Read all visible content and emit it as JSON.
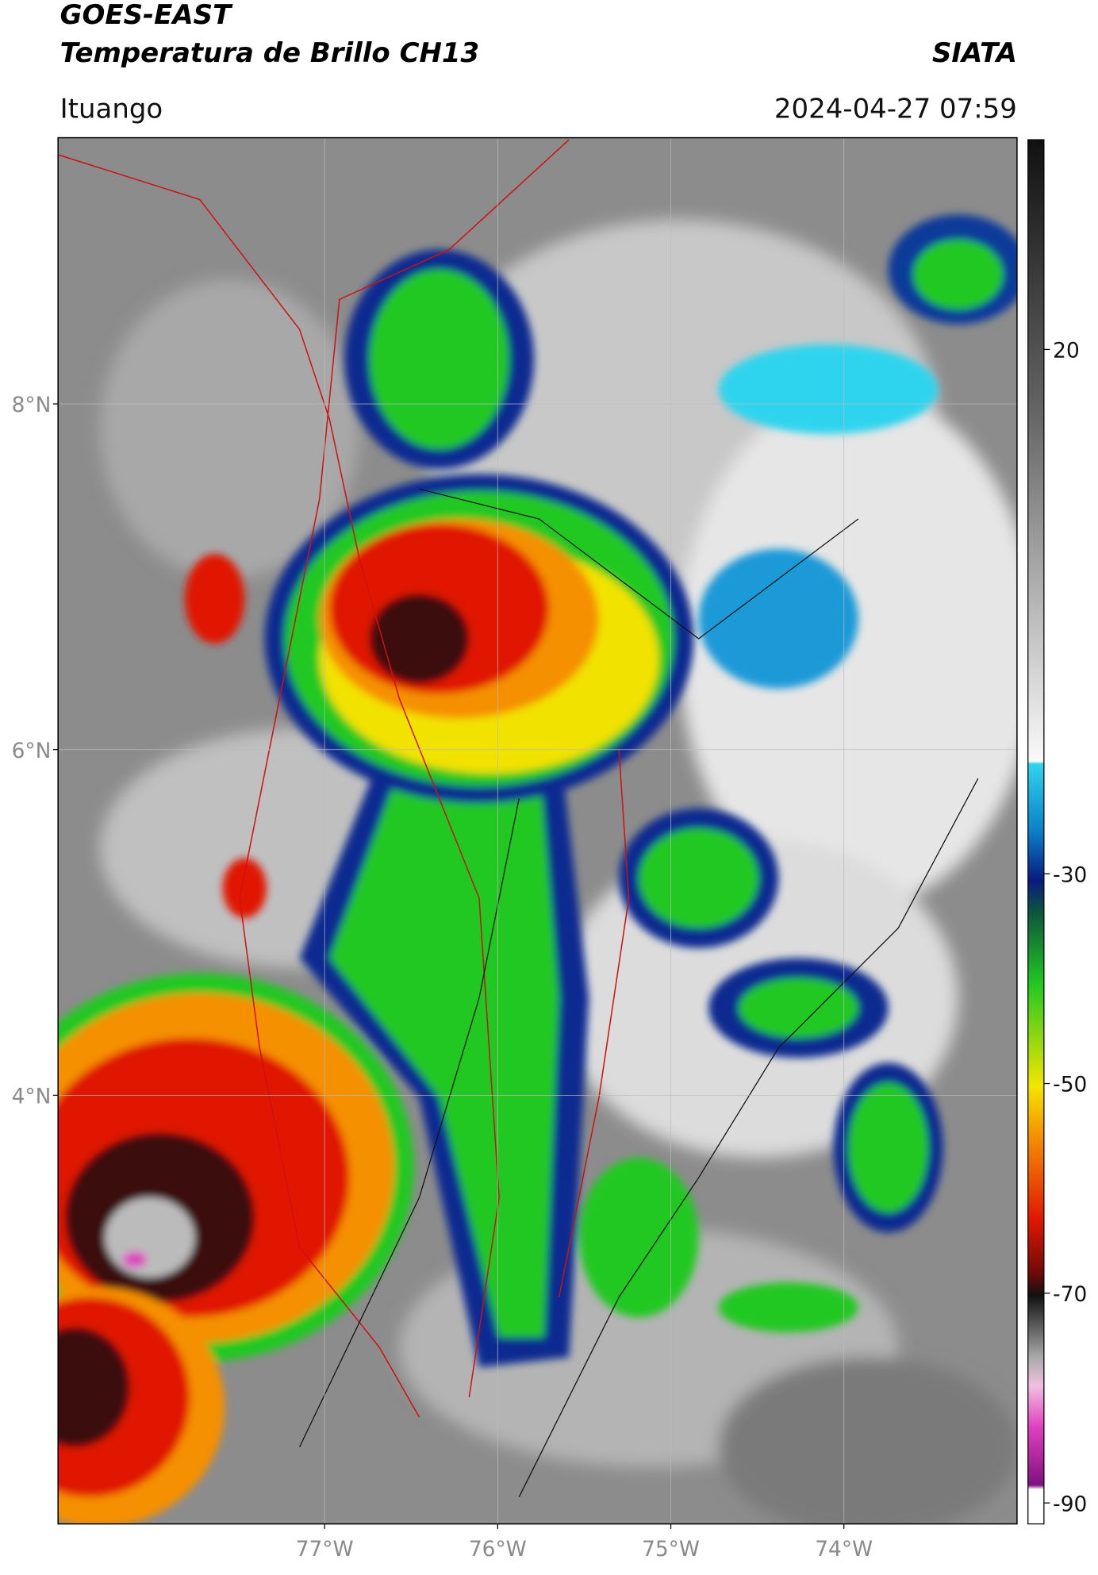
{
  "header": {
    "title": "GOES-EAST",
    "product": "Temperatura de Brillo CH13",
    "source": "SIATA",
    "location": "Ituango",
    "datetime": "2024-04-27 07:59"
  },
  "map": {
    "xlim": [
      -78.54,
      -73.0
    ],
    "ylim": [
      1.52,
      9.54
    ],
    "lat_ticks": [
      {
        "value": 8,
        "label": "8°N"
      },
      {
        "value": 6,
        "label": "6°N"
      },
      {
        "value": 4,
        "label": "4°N"
      }
    ],
    "lon_ticks": [
      {
        "value": -77,
        "label": "77°W"
      },
      {
        "value": -76,
        "label": "76°W"
      },
      {
        "value": -75,
        "label": "75°W"
      },
      {
        "value": -74,
        "label": "74°W"
      }
    ],
    "colorbar": {
      "lim": [
        -92,
        40
      ],
      "ticks": [
        20,
        -30,
        -50,
        -70,
        -90
      ]
    }
  }
}
